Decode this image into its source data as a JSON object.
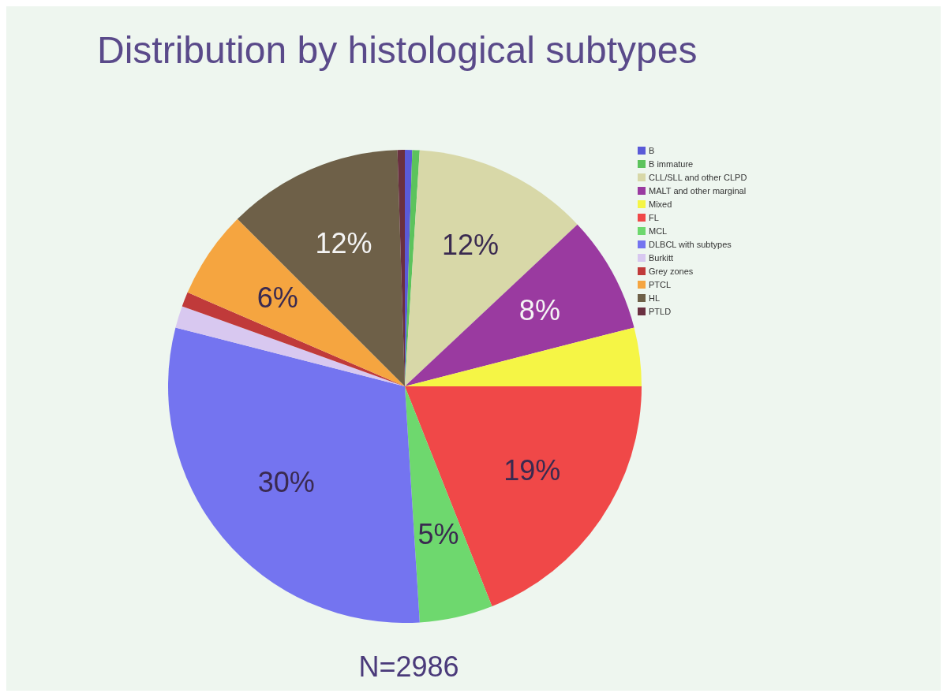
{
  "chart_data": {
    "type": "pie",
    "title": "Distribution by histological subtypes",
    "categories": [
      "B",
      "B immature",
      "CLL/SLL and other CLPD",
      "MALT and other marginal",
      "Mixed",
      "FL",
      "MCL",
      "DLBCL with subtypes",
      "Burkitt",
      "Grey zones",
      "PTCL",
      "HL",
      "PTLD"
    ],
    "values": [
      0.5,
      0.5,
      12,
      8,
      4,
      19,
      5,
      30,
      1.5,
      1,
      6,
      12,
      0.5
    ],
    "colors": [
      "#5a5ad8",
      "#5cc35c",
      "#d8d8a8",
      "#9a3aa0",
      "#f5f545",
      "#f04848",
      "#6ed86e",
      "#7474f0",
      "#d8c8f0",
      "#c03a3a",
      "#f5a540",
      "#6e6048",
      "#6a3040"
    ],
    "value_labels": [
      null,
      null,
      "12%",
      "8%",
      null,
      "19%",
      "5%",
      "30%",
      null,
      null,
      "6%",
      "12%",
      null
    ],
    "legend": "top right",
    "annotations": [
      "N=2986"
    ]
  }
}
